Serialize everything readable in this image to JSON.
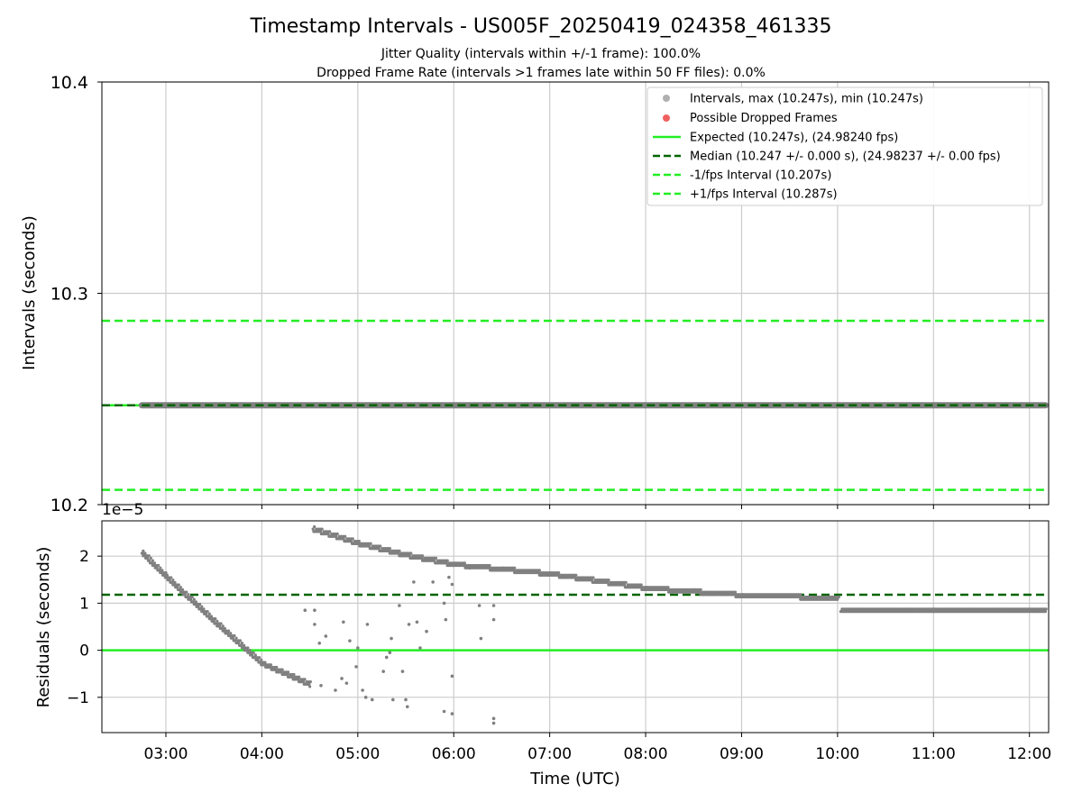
{
  "title": "Timestamp Intervals - US005F_20250419_024358_461335",
  "subtitle_1": "Jitter Quality (intervals within +/-1 frame): 100.0%",
  "subtitle_2": "Dropped Frame Rate (intervals >1 frames late within 50 FF files): 0.0%",
  "colors": {
    "points": "#808080",
    "legend_points": "#b0b0b0",
    "dropped": "#f06060",
    "expected": "#22ee22",
    "median": "#006400",
    "fps_interval": "#22ee22",
    "grid": "#cccccc"
  },
  "chart_data": [
    {
      "type": "scatter",
      "ylabel": "Intervals (seconds)",
      "ylim": [
        10.2,
        10.4
      ],
      "y_ticks": [
        "10.2",
        "10.3",
        "10.4"
      ],
      "xlim_hours": [
        2.333,
        12.2
      ],
      "grid": true,
      "legend_position": "top-right",
      "series": [
        {
          "name": "Intervals, max (10.247s), min (10.247s)",
          "x_range": [
            "02:45",
            "12:10"
          ],
          "y": 10.247
        },
        {
          "name": "Possible Dropped Frames",
          "points": []
        }
      ],
      "reference_lines": [
        {
          "name": "Expected (10.247s), (24.98240 fps)",
          "y": 10.247,
          "style": "solid"
        },
        {
          "name": "Median (10.247 +/- 0.000 s), (24.98237 +/- 0.00 fps)",
          "y": 10.247,
          "style": "dashed"
        },
        {
          "name": "-1/fps Interval (10.207s)",
          "y": 10.207,
          "style": "dashed"
        },
        {
          "name": "+1/fps Interval (10.287s)",
          "y": 10.287,
          "style": "dashed"
        }
      ]
    },
    {
      "type": "scatter",
      "ylabel": "Residuals (seconds)",
      "xlabel": "Time (UTC)",
      "scale_label": "1e−5",
      "ylim": [
        -1.75,
        2.75
      ],
      "y_ticks": [
        "−1",
        "0",
        "1",
        "2"
      ],
      "x_ticks": [
        "03:00",
        "04:00",
        "05:00",
        "06:00",
        "07:00",
        "08:00",
        "09:00",
        "10:00",
        "11:00",
        "12:00"
      ],
      "grid": true,
      "reference_lines": [
        {
          "name": "Expected",
          "y": 0,
          "style": "solid"
        },
        {
          "name": "Median",
          "y": 1.18,
          "style": "dashed"
        }
      ],
      "trend": [
        {
          "t": "02:45",
          "y": 2.05
        },
        {
          "t": "03:00",
          "y": 1.55
        },
        {
          "t": "03:30",
          "y": 0.6
        },
        {
          "t": "04:00",
          "y": -0.3
        },
        {
          "t": "04:20",
          "y": -0.6
        },
        {
          "t": "04:30",
          "y": -0.75
        },
        {
          "t": "04:32",
          "y": 2.55
        },
        {
          "t": "05:00",
          "y": 2.25
        },
        {
          "t": "05:30",
          "y": 2.0
        },
        {
          "t": "06:00",
          "y": 1.8
        },
        {
          "t": "06:30",
          "y": 1.7
        },
        {
          "t": "07:00",
          "y": 1.6
        },
        {
          "t": "07:30",
          "y": 1.45
        },
        {
          "t": "08:00",
          "y": 1.3
        },
        {
          "t": "08:30",
          "y": 1.22
        },
        {
          "t": "09:00",
          "y": 1.15
        },
        {
          "t": "10:00",
          "y": 1.08
        },
        {
          "t": "10:02",
          "y": 0.82
        },
        {
          "t": "11:00",
          "y": 0.82
        },
        {
          "t": "12:10",
          "y": 0.8
        }
      ],
      "outliers": [
        {
          "t": "04:27",
          "y": 0.85
        },
        {
          "t": "04:33",
          "y": 0.55
        },
        {
          "t": "04:36",
          "y": 0.15
        },
        {
          "t": "04:33",
          "y": 0.85
        },
        {
          "t": "04:37",
          "y": -0.75
        },
        {
          "t": "04:40",
          "y": 0.3
        },
        {
          "t": "04:46",
          "y": -0.85
        },
        {
          "t": "04:50",
          "y": -0.6
        },
        {
          "t": "04:51",
          "y": 0.6
        },
        {
          "t": "04:53",
          "y": -0.7
        },
        {
          "t": "04:55",
          "y": 0.2
        },
        {
          "t": "04:59",
          "y": -0.35
        },
        {
          "t": "05:00",
          "y": 0.05
        },
        {
          "t": "05:03",
          "y": -0.85
        },
        {
          "t": "05:06",
          "y": 0.55
        },
        {
          "t": "05:05",
          "y": -1.0
        },
        {
          "t": "05:09",
          "y": -1.05
        },
        {
          "t": "05:16",
          "y": -0.45
        },
        {
          "t": "05:18",
          "y": -0.15
        },
        {
          "t": "05:20",
          "y": -0.05
        },
        {
          "t": "05:21",
          "y": 0.25
        },
        {
          "t": "05:22",
          "y": -1.05
        },
        {
          "t": "05:26",
          "y": 0.95
        },
        {
          "t": "05:28",
          "y": -0.45
        },
        {
          "t": "05:30",
          "y": -1.05
        },
        {
          "t": "05:31",
          "y": -1.2
        },
        {
          "t": "05:32",
          "y": 0.55
        },
        {
          "t": "05:35",
          "y": 1.45
        },
        {
          "t": "05:37",
          "y": 0.6
        },
        {
          "t": "05:39",
          "y": 0.05
        },
        {
          "t": "05:43",
          "y": 0.4
        },
        {
          "t": "05:47",
          "y": 1.45
        },
        {
          "t": "05:54",
          "y": 1.0
        },
        {
          "t": "05:54",
          "y": -1.3
        },
        {
          "t": "05:55",
          "y": 0.65
        },
        {
          "t": "05:57",
          "y": 1.55
        },
        {
          "t": "05:59",
          "y": -1.35
        },
        {
          "t": "05:59",
          "y": -0.55
        },
        {
          "t": "05:59",
          "y": 1.4
        },
        {
          "t": "06:10",
          "y": 1.75
        },
        {
          "t": "06:16",
          "y": 0.95
        },
        {
          "t": "06:17",
          "y": 0.25
        },
        {
          "t": "06:25",
          "y": 0.95
        },
        {
          "t": "06:25",
          "y": 0.65
        },
        {
          "t": "06:25",
          "y": -1.45
        },
        {
          "t": "06:25",
          "y": -1.55
        }
      ]
    }
  ]
}
